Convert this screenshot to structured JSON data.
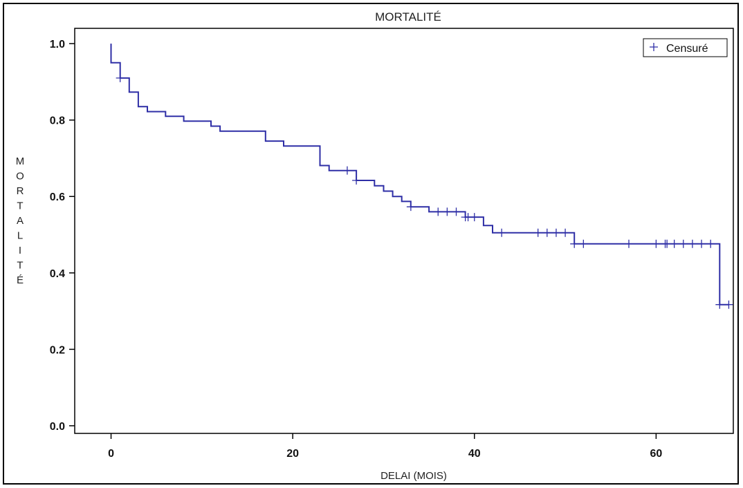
{
  "chart_data": {
    "type": "line",
    "title": "MORTALITÉ",
    "xlabel": "DELAI (MOIS)",
    "ylabel": "MORTALITÉ",
    "xlim": [
      -4,
      68.5
    ],
    "ylim": [
      -0.02,
      1.04
    ],
    "xticks": [
      0,
      20,
      40,
      60
    ],
    "yticks": [
      0.0,
      0.2,
      0.4,
      0.6,
      0.8,
      1.0
    ],
    "xtick_labels": [
      "0",
      "20",
      "40",
      "60"
    ],
    "ytick_labels": [
      "0.0",
      "0.2",
      "0.4",
      "0.6",
      "0.8",
      "1.0"
    ],
    "grid": false,
    "legend": {
      "position": "top-right",
      "entries": [
        {
          "marker": "+",
          "label": "Censuré"
        }
      ]
    },
    "color": "#2e2ea6",
    "series": [
      {
        "step": [
          [
            0,
            1.0
          ],
          [
            0,
            0.95
          ],
          [
            1,
            0.95
          ],
          [
            1,
            0.91
          ],
          [
            2,
            0.91
          ],
          [
            2,
            0.873
          ],
          [
            3,
            0.873
          ],
          [
            3,
            0.835
          ],
          [
            4,
            0.835
          ],
          [
            4,
            0.822
          ],
          [
            6,
            0.822
          ],
          [
            6,
            0.81
          ],
          [
            8,
            0.81
          ],
          [
            8,
            0.797
          ],
          [
            11,
            0.797
          ],
          [
            11,
            0.784
          ],
          [
            12,
            0.784
          ],
          [
            12,
            0.771
          ],
          [
            17,
            0.771
          ],
          [
            17,
            0.745
          ],
          [
            19,
            0.745
          ],
          [
            19,
            0.732
          ],
          [
            23,
            0.732
          ],
          [
            23,
            0.681
          ],
          [
            24,
            0.681
          ],
          [
            24,
            0.668
          ],
          [
            27,
            0.668
          ],
          [
            27,
            0.642
          ],
          [
            29,
            0.642
          ],
          [
            29,
            0.628
          ],
          [
            30,
            0.628
          ],
          [
            30,
            0.614
          ],
          [
            31,
            0.614
          ],
          [
            31,
            0.6
          ],
          [
            32,
            0.6
          ],
          [
            32,
            0.587
          ],
          [
            33,
            0.587
          ],
          [
            33,
            0.573
          ],
          [
            35,
            0.573
          ],
          [
            35,
            0.56
          ],
          [
            39,
            0.56
          ],
          [
            39,
            0.546
          ],
          [
            41,
            0.546
          ],
          [
            41,
            0.524
          ],
          [
            42,
            0.524
          ],
          [
            42,
            0.505
          ],
          [
            51,
            0.505
          ],
          [
            51,
            0.476
          ],
          [
            67,
            0.476
          ],
          [
            67,
            0.317
          ],
          [
            68,
            0.317
          ]
        ],
        "censored": [
          [
            1,
            0.91
          ],
          [
            26,
            0.668
          ],
          [
            27,
            0.642
          ],
          [
            33,
            0.573
          ],
          [
            36,
            0.56
          ],
          [
            37,
            0.56
          ],
          [
            38,
            0.56
          ],
          [
            39,
            0.546
          ],
          [
            39.3,
            0.546
          ],
          [
            40,
            0.546
          ],
          [
            43,
            0.505
          ],
          [
            47,
            0.505
          ],
          [
            48,
            0.505
          ],
          [
            49,
            0.505
          ],
          [
            50,
            0.505
          ],
          [
            51,
            0.476
          ],
          [
            52,
            0.476
          ],
          [
            57,
            0.476
          ],
          [
            60,
            0.476
          ],
          [
            61,
            0.476
          ],
          [
            61.2,
            0.476
          ],
          [
            62,
            0.476
          ],
          [
            63,
            0.476
          ],
          [
            64,
            0.476
          ],
          [
            65,
            0.476
          ],
          [
            66,
            0.476
          ],
          [
            67,
            0.317
          ],
          [
            68,
            0.317
          ]
        ]
      }
    ]
  }
}
